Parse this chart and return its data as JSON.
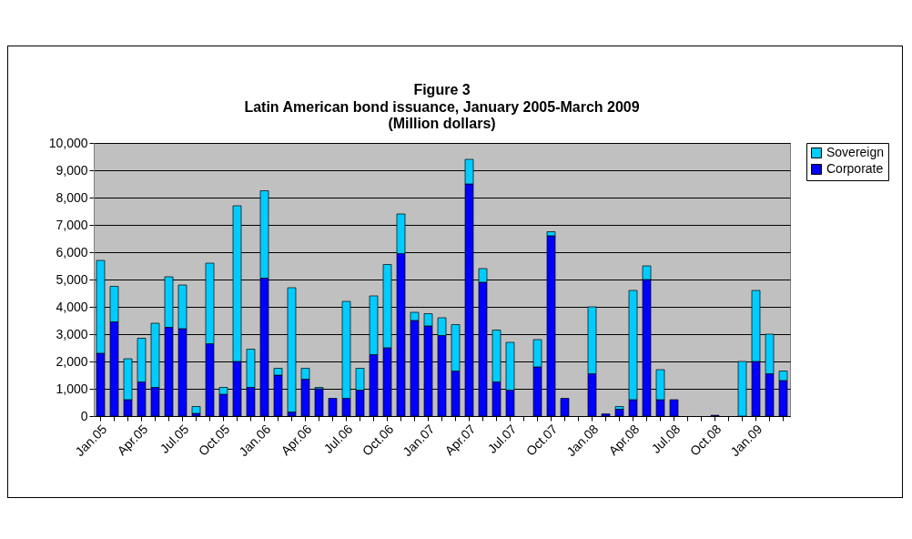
{
  "chart_data": {
    "type": "bar",
    "stacked": true,
    "title": "Figure 3",
    "subtitle": "Latin American bond issuance, January 2005-March 2009",
    "annotations": [
      "(Million dollars)"
    ],
    "categories": [
      "Jan.05",
      null,
      null,
      "Apr.05",
      null,
      null,
      "Jul.05",
      null,
      null,
      "Oct.05",
      null,
      null,
      "Jan.06",
      null,
      null,
      "Apr.06",
      null,
      null,
      "Jul.06",
      null,
      null,
      "Oct.06",
      null,
      null,
      "Jan.07",
      null,
      null,
      "Apr.07",
      null,
      null,
      "Jul.07",
      null,
      null,
      "Oct.07",
      null,
      null,
      "Jan.08",
      null,
      null,
      "Apr.08",
      null,
      null,
      "Jul.08",
      null,
      null,
      "Oct.08",
      null,
      null,
      "Jan.09",
      null,
      null
    ],
    "series": [
      {
        "name": "Corporate",
        "color": "#0000ff",
        "values": [
          2300,
          3450,
          600,
          1250,
          1050,
          3250,
          3200,
          100,
          2650,
          800,
          2000,
          1050,
          5050,
          1500,
          150,
          1350,
          1000,
          650,
          650,
          950,
          2250,
          2500,
          5950,
          3500,
          3300,
          2950,
          1650,
          8500,
          4900,
          1250,
          950,
          0,
          1800,
          6600,
          650,
          0,
          1550,
          80,
          250,
          600,
          5000,
          600,
          600,
          0,
          0,
          30,
          0,
          0,
          2000,
          1550,
          1300
        ]
      },
      {
        "name": "Sovereign",
        "color": "#00ccff",
        "values": [
          3400,
          1300,
          1500,
          1600,
          2350,
          1850,
          1600,
          250,
          2950,
          250,
          5700,
          1400,
          3200,
          250,
          4550,
          400,
          50,
          0,
          3550,
          800,
          2150,
          3050,
          1450,
          300,
          450,
          650,
          1700,
          900,
          500,
          1900,
          1750,
          0,
          1000,
          150,
          0,
          0,
          2450,
          0,
          100,
          4000,
          500,
          1100,
          0,
          0,
          0,
          0,
          0,
          2000,
          2600,
          1450,
          350
        ]
      }
    ],
    "ylim": [
      0,
      10000
    ],
    "yticks": [
      0,
      {
        "value": 1000,
        "label": "1,000"
      },
      {
        "value": 2000,
        "label": "2,000"
      },
      {
        "value": 3000,
        "label": "3,000"
      },
      {
        "value": 4000,
        "label": "4,000"
      },
      {
        "value": 5000,
        "label": "5,000"
      },
      {
        "value": 6000,
        "label": "6,000"
      },
      {
        "value": 7000,
        "label": "7,000"
      },
      {
        "value": 8000,
        "label": "8,000"
      },
      {
        "value": 9000,
        "label": "9,000"
      },
      {
        "value": 10000,
        "label": "10,000"
      }
    ],
    "grid": "y",
    "legend": "right"
  }
}
